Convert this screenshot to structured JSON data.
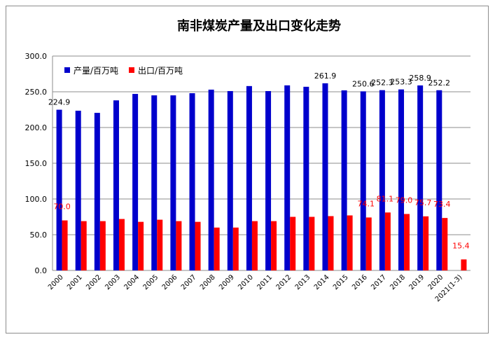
{
  "chart_data": {
    "type": "bar",
    "title": "南非煤炭产量及出口变化走势",
    "xlabel": "",
    "ylabel": "",
    "ylim": [
      0,
      300
    ],
    "yticks": [
      "0.0",
      "50.0",
      "100.0",
      "150.0",
      "200.0",
      "250.0",
      "300.0"
    ],
    "grid": true,
    "legend_position": "top-left",
    "categories": [
      "2000",
      "2001",
      "2002",
      "2003",
      "2004",
      "2005",
      "2006",
      "2007",
      "2008",
      "2009",
      "2010",
      "2011",
      "2012",
      "2013",
      "2014",
      "2015",
      "2016",
      "2017",
      "2018",
      "2019",
      "2020",
      "2021(1-3)"
    ],
    "series": [
      {
        "name": "产量/百万吨",
        "color": "#0000CC",
        "values": [
          224.9,
          223.5,
          220.5,
          238,
          247,
          245,
          245,
          248,
          253,
          251,
          258,
          251,
          259,
          257,
          261.9,
          252,
          250.6,
          252.3,
          253.3,
          258.9,
          252.2,
          null
        ],
        "labels": [
          "224.9",
          "",
          "",
          "",
          "",
          "",
          "",
          "",
          "",
          "",
          "",
          "",
          "",
          "",
          "261.9",
          "",
          "250.6",
          "252.3",
          "253.3",
          "258.9",
          "252.2",
          ""
        ]
      },
      {
        "name": "出口/百万吨",
        "color": "#FF0000",
        "values": [
          70.0,
          69,
          69,
          72,
          68,
          71,
          69,
          68,
          60,
          60,
          69,
          69,
          75,
          75,
          76,
          77,
          74.1,
          81.1,
          79.0,
          75.7,
          73.4,
          15.4
        ],
        "labels": [
          "70.0",
          "",
          "",
          "",
          "",
          "",
          "",
          "",
          "",
          "",
          "",
          "",
          "",
          "",
          "",
          "",
          "74.1",
          "81.1",
          "79.0",
          "75.7",
          "73.4",
          "15.4"
        ]
      }
    ]
  }
}
